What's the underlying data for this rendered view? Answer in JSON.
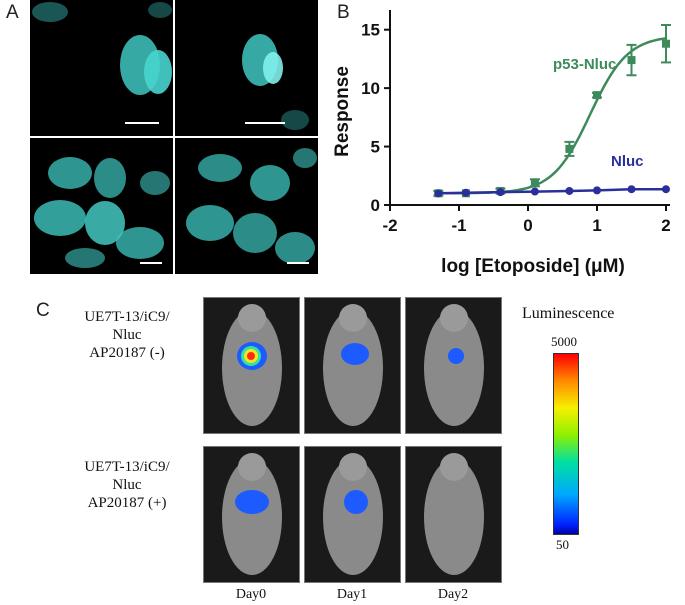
{
  "panels": {
    "a": {
      "letter": "A"
    },
    "b": {
      "letter": "B"
    },
    "c": {
      "letter": "C"
    }
  },
  "colors": {
    "cell_fluorescence": "#3fc7c2",
    "p53_series": "#3d8a5c",
    "nluc_series": "#2b2f9c",
    "axis": "#111111"
  },
  "chart_data": {
    "type": "line",
    "title": "",
    "xlabel": "log [Etoposide] (μM)",
    "ylabel": "Response",
    "xlim": [
      -2,
      2
    ],
    "ylim": [
      0,
      16
    ],
    "xticks": [
      -2,
      -1,
      0,
      1,
      2
    ],
    "yticks": [
      0,
      5,
      10,
      15
    ],
    "series": [
      {
        "name": "p53-Nluc",
        "color": "#3d8a5c",
        "points": [
          {
            "x": -1.3,
            "y": 1.0,
            "err": 0.2
          },
          {
            "x": -0.9,
            "y": 1.0,
            "err": 0.15
          },
          {
            "x": -0.4,
            "y": 1.2,
            "err": 0.2
          },
          {
            "x": 0.1,
            "y": 1.9,
            "err": 0.3
          },
          {
            "x": 0.6,
            "y": 4.8,
            "err": 0.6
          },
          {
            "x": 1.0,
            "y": 9.4,
            "err": 0.2
          },
          {
            "x": 1.5,
            "y": 12.4,
            "err": 1.3
          },
          {
            "x": 2.0,
            "y": 13.8,
            "err": 1.6
          }
        ],
        "fit": {
          "bottom": 1.0,
          "top": 14.5,
          "logEC50": 0.9,
          "hill": 1.6
        }
      },
      {
        "name": "Nluc",
        "color": "#2b2f9c",
        "points": [
          {
            "x": -1.3,
            "y": 1.0,
            "err": 0.1
          },
          {
            "x": -0.9,
            "y": 1.05,
            "err": 0.1
          },
          {
            "x": -0.4,
            "y": 1.1,
            "err": 0.1
          },
          {
            "x": 0.1,
            "y": 1.15,
            "err": 0.1
          },
          {
            "x": 0.6,
            "y": 1.2,
            "err": 0.1
          },
          {
            "x": 1.0,
            "y": 1.25,
            "err": 0.1
          },
          {
            "x": 1.5,
            "y": 1.35,
            "err": 0.1
          },
          {
            "x": 2.0,
            "y": 1.35,
            "err": 0.1
          }
        ]
      }
    ]
  },
  "imaging": {
    "rows": [
      {
        "label": [
          "UE7T-13/iC9/",
          "Nluc",
          "AP20187 (-)"
        ]
      },
      {
        "label": [
          "UE7T-13/iC9/",
          "Nluc",
          "AP20187 (+)"
        ]
      }
    ],
    "days": [
      "Day0",
      "Day1",
      "Day2"
    ],
    "colorbar": {
      "title": "Luminescence",
      "max": "5000",
      "min": "50"
    }
  }
}
